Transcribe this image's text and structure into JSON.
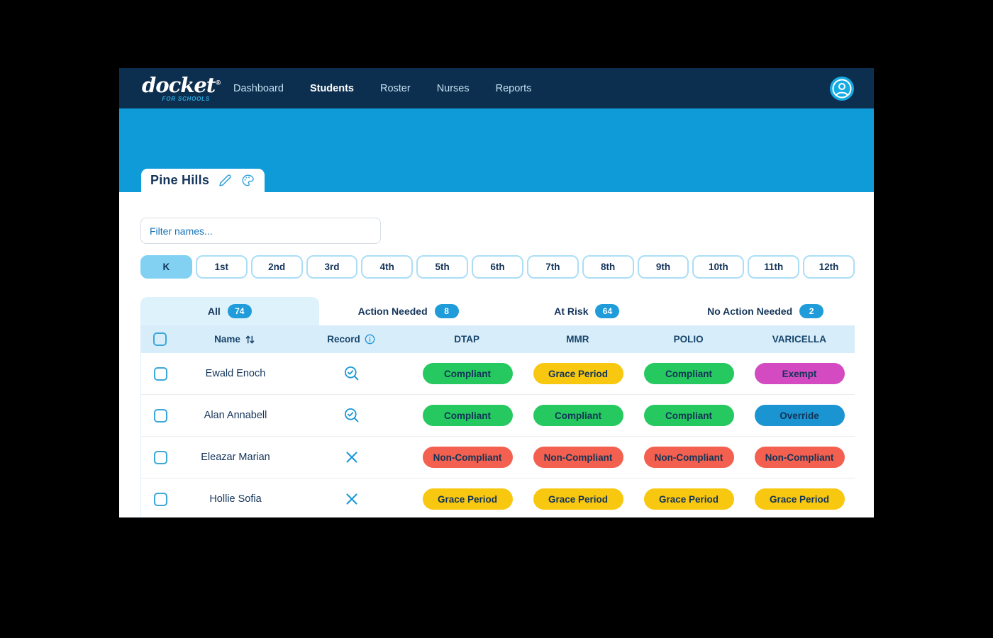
{
  "nav": {
    "logo": {
      "brand": "docket",
      "registered": "®",
      "tagline": "FOR SCHOOLS"
    },
    "items": [
      {
        "label": "Dashboard",
        "active": false
      },
      {
        "label": "Students",
        "active": true
      },
      {
        "label": "Roster",
        "active": false
      },
      {
        "label": "Nurses",
        "active": false
      },
      {
        "label": "Reports",
        "active": false
      }
    ]
  },
  "school_tab": {
    "name": "Pine Hills"
  },
  "filter": {
    "placeholder": "Filter names..."
  },
  "grades": [
    {
      "label": "K",
      "active": true
    },
    {
      "label": "1st",
      "active": false
    },
    {
      "label": "2nd",
      "active": false
    },
    {
      "label": "3rd",
      "active": false
    },
    {
      "label": "4th",
      "active": false
    },
    {
      "label": "5th",
      "active": false
    },
    {
      "label": "6th",
      "active": false
    },
    {
      "label": "7th",
      "active": false
    },
    {
      "label": "8th",
      "active": false
    },
    {
      "label": "9th",
      "active": false
    },
    {
      "label": "10th",
      "active": false
    },
    {
      "label": "11th",
      "active": false
    },
    {
      "label": "12th",
      "active": false
    }
  ],
  "tabs": [
    {
      "label": "All",
      "count": "74",
      "active": true
    },
    {
      "label": "Action Needed",
      "count": "8",
      "active": false
    },
    {
      "label": "At Risk",
      "count": "64",
      "active": false
    },
    {
      "label": "No Action Needed",
      "count": "2",
      "active": false
    }
  ],
  "table": {
    "columns": {
      "name": "Name",
      "record": "Record",
      "vaccines": [
        "DTAP",
        "MMR",
        "POLIO",
        "VARICELLA"
      ]
    },
    "rows": [
      {
        "name": "Ewald Enoch",
        "record": "search-check",
        "statuses": [
          "Compliant",
          "Grace Period",
          "Compliant",
          "Exempt"
        ]
      },
      {
        "name": "Alan Annabell",
        "record": "search-check",
        "statuses": [
          "Compliant",
          "Compliant",
          "Compliant",
          "Override"
        ]
      },
      {
        "name": "Eleazar Marian",
        "record": "x-mark",
        "statuses": [
          "Non-Compliant",
          "Non-Compliant",
          "Non-Compliant",
          "Non-Compliant"
        ]
      },
      {
        "name": "Hollie Sofia",
        "record": "x-mark",
        "statuses": [
          "Grace Period",
          "Grace Period",
          "Grace Period",
          "Grace Period"
        ]
      }
    ]
  },
  "status_colors": {
    "Compliant": "#25c95f",
    "Grace Period": "#f8c70f",
    "Exempt": "#d44ac1",
    "Override": "#1b95d2",
    "Non-Compliant": "#f3604f"
  },
  "theme": {
    "navbar_bg": "#0d2f4f",
    "hero_bg": "#0f9ad8",
    "accent_blue": "#1a97d6",
    "badge_text": "#123457"
  }
}
